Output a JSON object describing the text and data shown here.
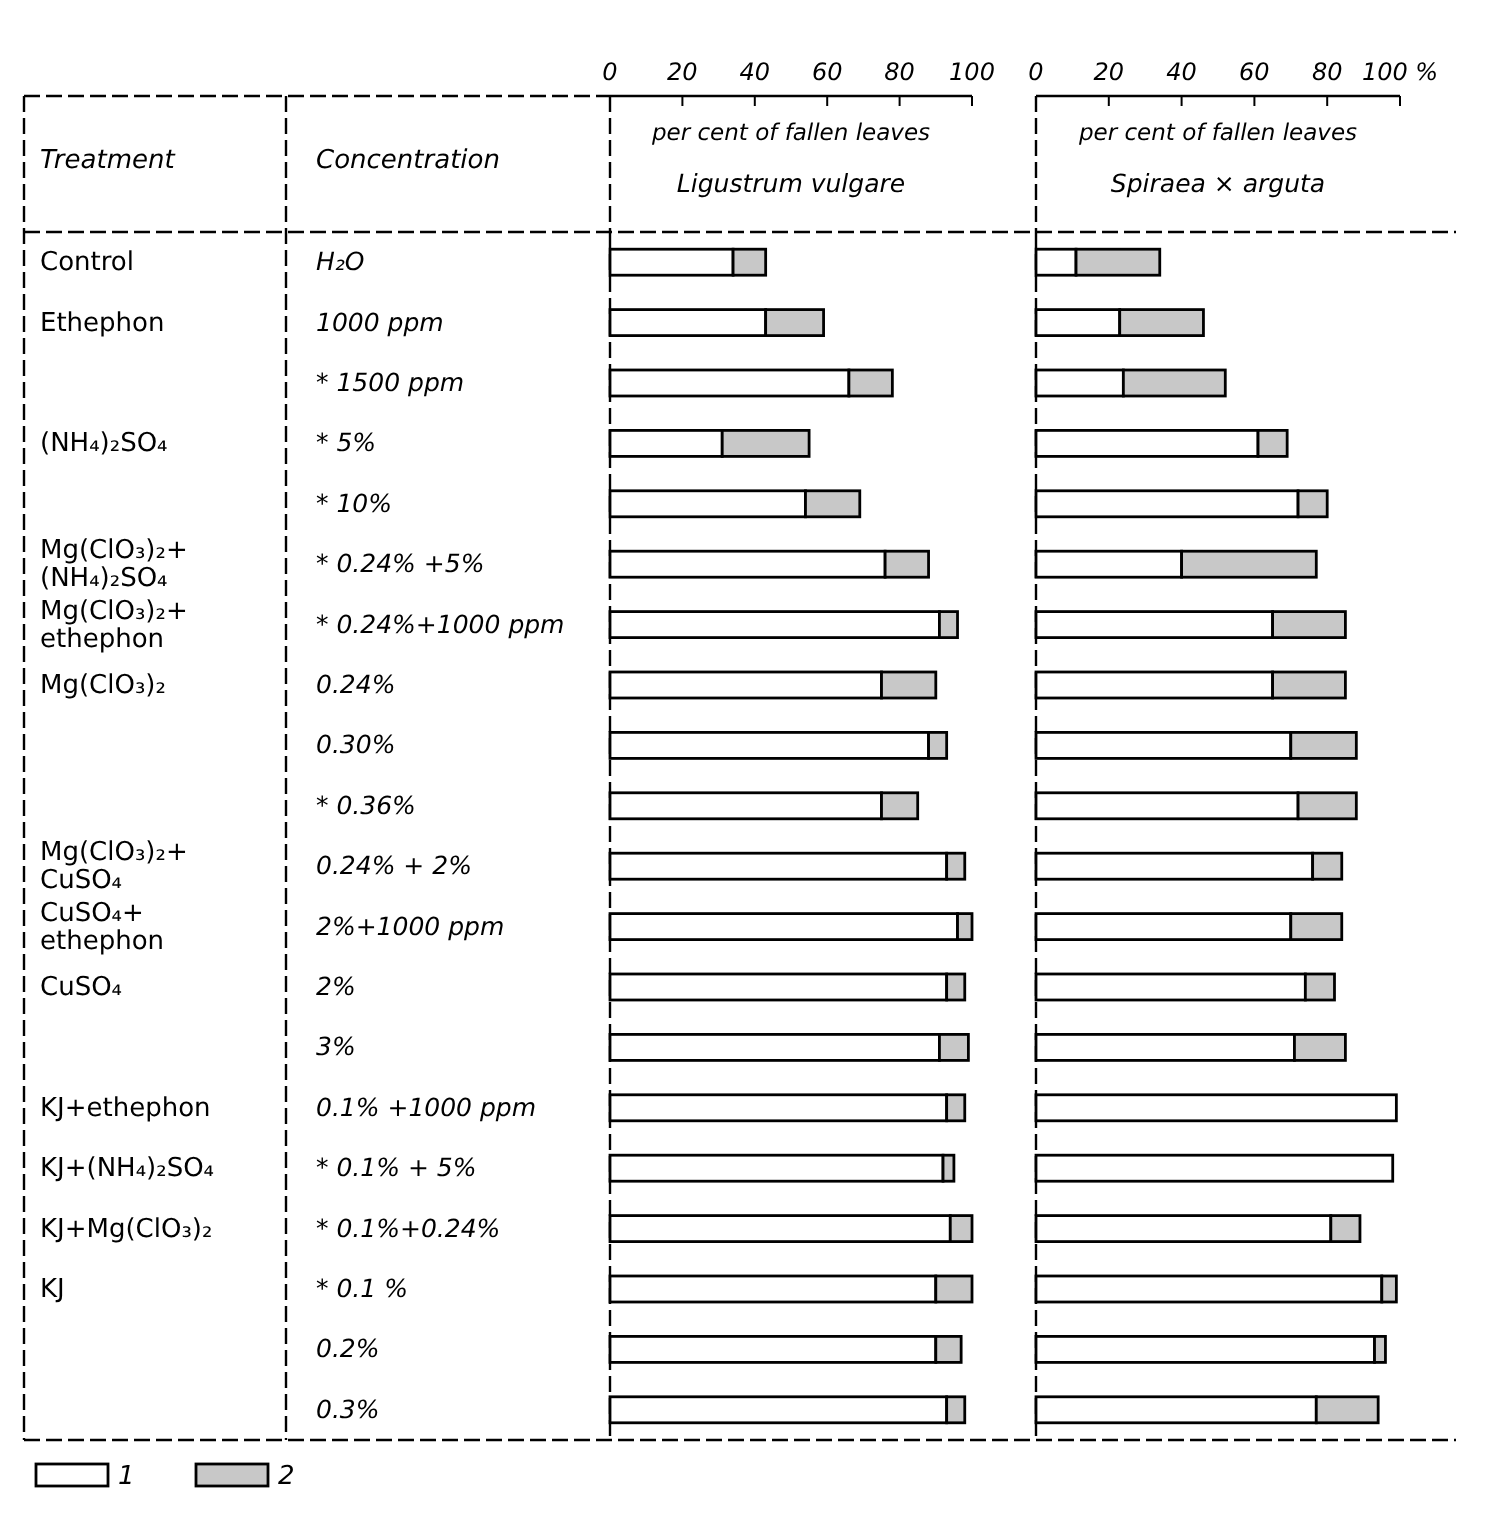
{
  "chart_data": [
    {
      "type": "bar",
      "orientation": "horizontal",
      "stacked": true,
      "title": "Ligustrum vulgare",
      "xlabel": "per cent of fallen leaves",
      "categories": [
        "H₂O",
        "1000 ppm",
        "* 1500 ppm",
        "* 5%",
        "* 10%",
        "* 0.24% +5%",
        "* 0.24%+1000 ppm",
        "0.24%",
        "0.30%",
        "* 0.36%",
        "0.24% + 2%",
        "2%+1000 ppm",
        "2%",
        "3%",
        "0.1% +1000 ppm",
        "* 0.1% + 5%",
        "* 0.1%+0.24%",
        "* 0.1 %",
        "0.2%",
        "0.3%"
      ],
      "series": [
        {
          "name": "1",
          "color": "#ffffff",
          "values": [
            34,
            43,
            66,
            31,
            54,
            76,
            91,
            75,
            88,
            75,
            93,
            96,
            93,
            91,
            93,
            92,
            94,
            90,
            90,
            93
          ]
        },
        {
          "name": "2",
          "color": "#c8c8c8",
          "values": [
            9,
            16,
            12,
            24,
            15,
            12,
            5,
            15,
            5,
            10,
            5,
            4,
            5,
            8,
            5,
            3,
            6,
            10,
            7,
            5
          ]
        }
      ],
      "xlim": [
        0,
        100
      ],
      "xticks": [
        0,
        20,
        40,
        60,
        80,
        100
      ],
      "legend": "bottom left",
      "annotations": [
        "Treatment",
        "Concentration",
        "Control",
        "Ethephon",
        "(NH₄)₂SO₄",
        "Mg(ClO₃)₂+\n(NH₄)₂SO₄",
        "Mg(ClO₃)₂+\nethephon",
        "Mg(ClO₃)₂",
        "Mg(ClO₃)₂+\nCuSO₄",
        "CuSO₄+\nethephon",
        "CuSO₄",
        "KJ+ethephon",
        "KJ+(NH₄)₂SO₄",
        "KJ+Mg(ClO₃)₂",
        "KJ"
      ]
    },
    {
      "type": "bar",
      "orientation": "horizontal",
      "stacked": true,
      "title": "Spiraea × arguta",
      "xlabel": "per cent of fallen leaves",
      "tick_labels": "x",
      "categories": [
        null,
        null,
        null,
        null,
        null,
        null,
        null,
        null,
        null,
        null,
        null,
        null,
        null,
        null,
        null,
        null,
        null,
        null,
        null,
        null
      ],
      "series": [
        {
          "color": "#ffffff",
          "values": [
            11,
            23,
            24,
            61,
            72,
            40,
            65,
            65,
            70,
            72,
            76,
            70,
            74,
            71,
            99,
            98,
            81,
            95,
            93,
            77
          ]
        },
        {
          "color": "#c8c8c8",
          "values": [
            23,
            23,
            28,
            8,
            8,
            37,
            20,
            20,
            18,
            16,
            8,
            14,
            8,
            14,
            0,
            0,
            8,
            4,
            3,
            17
          ]
        }
      ],
      "xlim": [
        0,
        100
      ],
      "xticks": [
        0,
        20,
        40,
        60,
        80,
        {
          "value": 100,
          "label": "100 %"
        }
      ]
    }
  ]
}
